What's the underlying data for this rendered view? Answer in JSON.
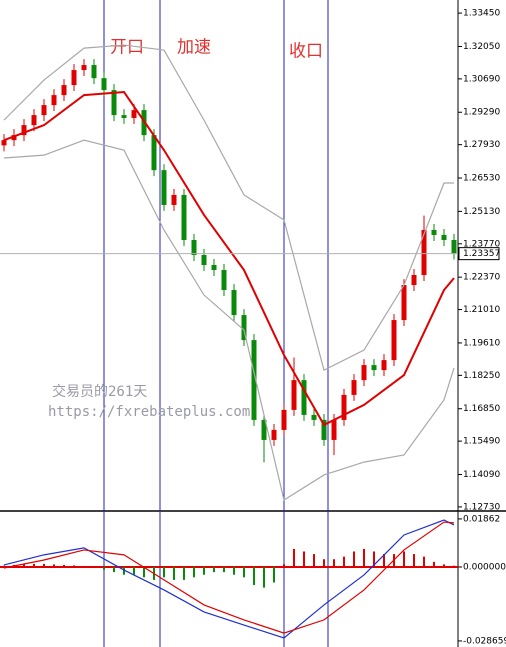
{
  "chart_data": [
    {
      "type": "candlestick",
      "annotations": [
        "开口",
        "加速",
        "收口"
      ],
      "watermark": [
        "交易员的261天",
        "https://fxrebateplus.com"
      ],
      "up_color": "#e00000",
      "down_color": "#0a8a0a",
      "open": [
        1.279,
        1.2812,
        1.2833,
        1.2875,
        1.2917,
        1.2959,
        1.3001,
        1.3043,
        1.3106,
        1.3127,
        1.3072,
        1.3022,
        1.2917,
        1.2905,
        1.2938,
        1.2833,
        1.2686,
        1.254,
        1.2582,
        1.2393,
        1.233,
        1.2288,
        1.2267,
        1.2183,
        1.2078,
        1.1973,
        1.1638,
        1.1554,
        1.1596,
        1.168,
        1.1805,
        1.1659,
        1.1638,
        1.1554,
        1.1638,
        1.1743,
        1.1805,
        1.1868,
        1.1847,
        1.1889,
        1.2057,
        1.2204,
        1.2246,
        1.2435,
        1.2414,
        1.2393
      ],
      "high": [
        1.2837,
        1.2858,
        1.29,
        1.2942,
        1.2984,
        1.3026,
        1.3068,
        1.3131,
        1.3152,
        1.3152,
        1.3097,
        1.3047,
        1.2942,
        1.2963,
        1.2963,
        1.2858,
        1.2711,
        1.2607,
        1.2607,
        1.2418,
        1.2355,
        1.2313,
        1.2292,
        1.2208,
        1.2103,
        1.1998,
        1.1663,
        1.1621,
        1.1705,
        1.19,
        1.183,
        1.1684,
        1.1663,
        1.1663,
        1.1768,
        1.183,
        1.1893,
        1.1893,
        1.1914,
        1.2082,
        1.2229,
        1.2271,
        1.2495,
        1.246,
        1.2439,
        1.2418
      ],
      "low": [
        1.2765,
        1.2787,
        1.2808,
        1.285,
        1.2892,
        1.2934,
        1.2976,
        1.3018,
        1.3081,
        1.3047,
        1.2997,
        1.2892,
        1.288,
        1.288,
        1.2808,
        1.2661,
        1.2515,
        1.2515,
        1.2368,
        1.2305,
        1.2263,
        1.2242,
        1.2158,
        1.2053,
        1.1948,
        1.1613,
        1.146,
        1.1529,
        1.1571,
        1.1655,
        1.1634,
        1.1613,
        1.1529,
        1.149,
        1.1613,
        1.1718,
        1.178,
        1.1822,
        1.1822,
        1.1864,
        1.2032,
        1.2179,
        1.2221,
        1.2389,
        1.2368,
        1.2311
      ],
      "close": [
        1.2812,
        1.2833,
        1.2875,
        1.2917,
        1.2959,
        1.3001,
        1.3043,
        1.3106,
        1.3127,
        1.3072,
        1.3022,
        1.2917,
        1.2905,
        1.2938,
        1.2833,
        1.2686,
        1.254,
        1.2582,
        1.2393,
        1.233,
        1.2288,
        1.2267,
        1.2183,
        1.2078,
        1.1973,
        1.1638,
        1.1554,
        1.1596,
        1.168,
        1.1805,
        1.1659,
        1.1638,
        1.1554,
        1.1638,
        1.1743,
        1.1805,
        1.1868,
        1.1847,
        1.1889,
        1.2057,
        1.2204,
        1.2246,
        1.2435,
        1.2414,
        1.2393,
        1.2336
      ],
      "series": [
        {
          "color": "#e00000",
          "x": [
            0,
            4,
            8,
            12,
            16,
            20,
            24,
            28,
            32,
            36,
            40,
            44,
            45
          ],
          "values": [
            1.2812,
            1.2875,
            1.3001,
            1.3014,
            1.277,
            1.2498,
            1.2267,
            1.191,
            1.1617,
            1.1701,
            1.1826,
            1.2183,
            1.2233
          ]
        },
        {
          "color": "#a8a8a8",
          "x": [
            0,
            4,
            8,
            12,
            16,
            20,
            24,
            28,
            32,
            36,
            40,
            44,
            45
          ],
          "values": [
            1.2896,
            1.3064,
            1.3198,
            1.3211,
            1.319,
            1.2896,
            1.2582,
            1.2477,
            1.1847,
            1.1931,
            1.2204,
            1.2632,
            1.2632
          ]
        },
        {
          "color": "#a8a8a8",
          "x": [
            0,
            4,
            8,
            12,
            16,
            20,
            24,
            28,
            32,
            36,
            40,
            44,
            45
          ],
          "values": [
            1.2737,
            1.2749,
            1.2812,
            1.277,
            1.2435,
            1.2162,
            1.2015,
            1.1302,
            1.1407,
            1.1461,
            1.1491,
            1.1722,
            1.1856
          ]
        }
      ],
      "current_price": {
        "value": 1.23357,
        "label": "1.23357"
      },
      "ylim": [
        1.126,
        1.34
      ],
      "yticks": [
        {
          "value": 1.3345,
          "label": "1.33450"
        },
        {
          "value": 1.3205,
          "label": "1.32050"
        },
        {
          "value": 1.3069,
          "label": "1.30690"
        },
        {
          "value": 1.2929,
          "label": "1.29290"
        },
        {
          "value": 1.2793,
          "label": "1.27930"
        },
        {
          "value": 1.2653,
          "label": "1.26530"
        },
        {
          "value": 1.2513,
          "label": "1.25130"
        },
        {
          "value": 1.2377,
          "label": "1.23770"
        },
        {
          "value": 1.2237,
          "label": "1.22370"
        },
        {
          "value": 1.2101,
          "label": "1.21010"
        },
        {
          "value": 1.1961,
          "label": "1.19610"
        },
        {
          "value": 1.1825,
          "label": "1.18250"
        },
        {
          "value": 1.1685,
          "label": "1.16850"
        },
        {
          "value": 1.1549,
          "label": "1.15490"
        },
        {
          "value": 1.1409,
          "label": "1.14090"
        },
        {
          "value": 1.1273,
          "label": "1.12730"
        }
      ]
    },
    {
      "type": "macd",
      "up_color": "#e00000",
      "down_color": "#0a8a0a",
      "values": [
        0.0005,
        0.0008,
        0.001,
        0.0012,
        0.0012,
        0.001,
        0.0008,
        0.0006,
        0.0004,
        0.0002,
        -0.001,
        -0.002,
        -0.003,
        -0.003,
        -0.004,
        -0.005,
        -0.004,
        -0.005,
        -0.005,
        -0.004,
        -0.003,
        -0.002,
        -0.002,
        -0.003,
        -0.004,
        -0.007,
        -0.008,
        -0.006,
        0.001,
        0.007,
        0.006,
        0.005,
        0.003,
        0.003,
        0.004,
        0.006,
        0.007,
        0.006,
        0.005,
        0.005,
        0.006,
        0.005,
        0.004,
        0.002,
        0.001,
        0.0005
      ],
      "series": [
        {
          "color": "#2030d0",
          "x": [
            0,
            4,
            8,
            12,
            16,
            20,
            24,
            28,
            32,
            36,
            40,
            44,
            45
          ],
          "values": [
            0.0008,
            0.0047,
            0.0074,
            -0.0012,
            -0.0089,
            -0.0174,
            -0.0225,
            -0.0275,
            -0.0147,
            -0.0031,
            0.0124,
            0.0182,
            0.0163
          ]
        },
        {
          "color": "#e00000",
          "x": [
            0,
            4,
            8,
            12,
            16,
            20,
            24,
            28,
            32,
            36,
            40,
            44,
            45
          ],
          "values": [
            -0.0004,
            0.0027,
            0.0066,
            0.0047,
            -0.005,
            -0.0147,
            -0.0205,
            -0.0256,
            -0.0205,
            -0.0089,
            0.0066,
            0.0174,
            0.0171
          ]
        }
      ],
      "ylim": [
        -0.031,
        0.0213
      ],
      "yticks": [
        {
          "value": 0.01862,
          "label": "0.01862"
        },
        {
          "value": 0,
          "label": "0.000000"
        },
        {
          "value": -0.028659,
          "label": "-0.028659"
        }
      ]
    }
  ]
}
